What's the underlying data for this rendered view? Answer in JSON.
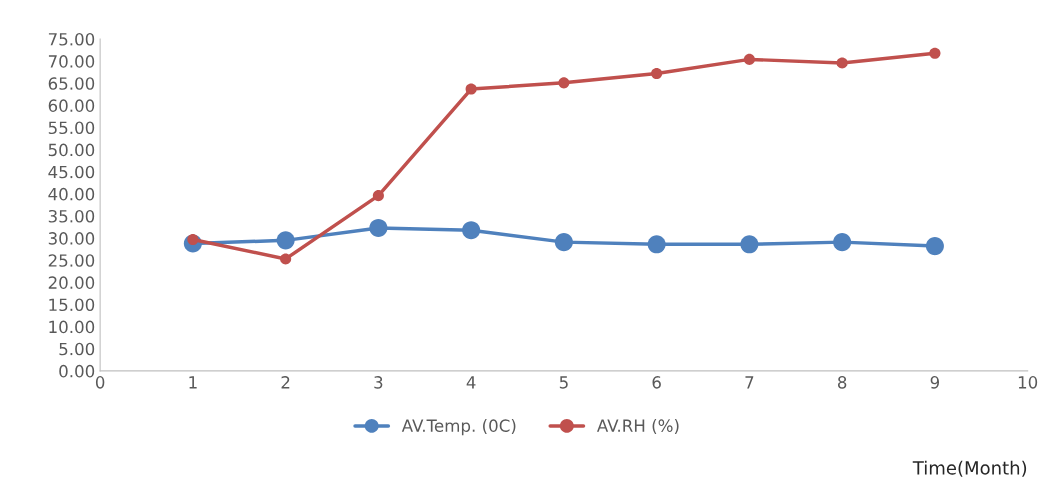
{
  "chart_data": {
    "type": "line",
    "xlabel": "Time(Month)",
    "x": [
      1,
      2,
      3,
      4,
      5,
      6,
      7,
      8,
      9
    ],
    "series": [
      {
        "name": "AV.Temp. (0C)",
        "color": "#4f81bd",
        "values": [
          28.8,
          29.5,
          32.3,
          31.8,
          29.1,
          28.6,
          28.6,
          29.1,
          28.2
        ]
      },
      {
        "name": "AV.RH (%)",
        "color": "#c0504d",
        "values": [
          29.7,
          25.3,
          39.6,
          63.7,
          65.1,
          67.2,
          70.4,
          69.6,
          71.8
        ]
      }
    ],
    "xlim": [
      0,
      10
    ],
    "xticks": [
      0,
      1,
      2,
      3,
      4,
      5,
      6,
      7,
      8,
      9,
      10
    ],
    "ylim": [
      0,
      75
    ],
    "yticks": [
      {
        "value": 0,
        "label": "0.00"
      },
      {
        "value": 5,
        "label": "5.00"
      },
      {
        "value": 10,
        "label": "10.00"
      },
      {
        "value": 15,
        "label": "15.00"
      },
      {
        "value": 20,
        "label": "20.00"
      },
      {
        "value": 25,
        "label": "25.00"
      },
      {
        "value": 30,
        "label": "30.00"
      },
      {
        "value": 35,
        "label": "35.00"
      },
      {
        "value": 40,
        "label": "40.00"
      },
      {
        "value": 45,
        "label": "45.00"
      },
      {
        "value": 50,
        "label": "50.00"
      },
      {
        "value": 55,
        "label": "55.00"
      },
      {
        "value": 60,
        "label": "60.00"
      },
      {
        "value": 65,
        "label": "65.00"
      },
      {
        "value": 70,
        "label": "70.00"
      },
      {
        "value": 75,
        "label": "75.00"
      }
    ],
    "marker": "circle",
    "line_style": "solid",
    "grid": false,
    "legend": "bottom"
  }
}
